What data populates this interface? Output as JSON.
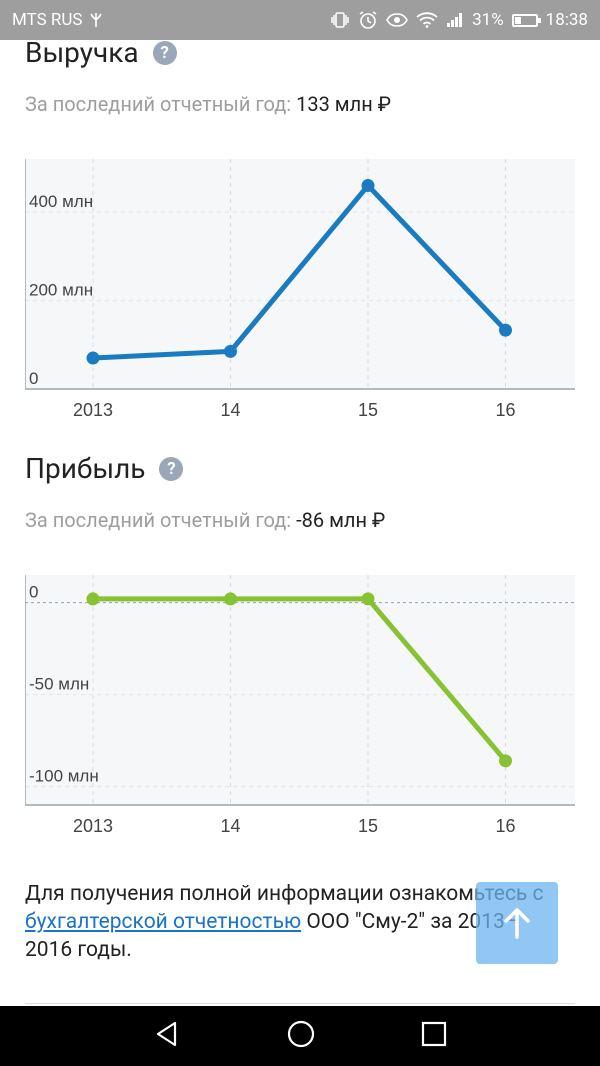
{
  "status_bar": {
    "carrier": "MTS RUS",
    "battery_percent": "31%",
    "time": "18:38",
    "battery_level": 0.31
  },
  "revenue": {
    "title": "Выручка",
    "subtitle_label": "За последний отчетный год:",
    "subtitle_value": "133 млн ₽"
  },
  "profit": {
    "title": "Прибыль",
    "subtitle_label": "За последний отчетный год:",
    "subtitle_value": "-86 млн ₽"
  },
  "footer": {
    "text_before": "Для получения полной информации ознакомьтесь с ",
    "link_text": "бухгалтерской отчетностью",
    "text_after": " ООО \"Сму-2\" за 2013–2016 годы."
  },
  "chart_data": [
    {
      "type": "line",
      "categories": [
        "2013",
        "14",
        "15",
        "16"
      ],
      "series": [
        {
          "values": [
            70,
            85,
            460,
            133
          ]
        }
      ],
      "ylim": [
        0,
        520
      ],
      "yticks": [
        0,
        200,
        400
      ],
      "ytick_labels": [
        "0",
        "200 млн",
        "400 млн"
      ],
      "color": "#1a7bc0",
      "grid": true
    },
    {
      "type": "line",
      "categories": [
        "2013",
        "14",
        "15",
        "16"
      ],
      "series": [
        {
          "values": [
            2,
            2,
            2,
            -86
          ]
        }
      ],
      "ylim": [
        -110,
        15
      ],
      "yticks": [
        0,
        -50,
        -100
      ],
      "ytick_labels": [
        "0",
        "-50 млн",
        "-100 млн"
      ],
      "color": "#86c232",
      "grid": true
    }
  ]
}
